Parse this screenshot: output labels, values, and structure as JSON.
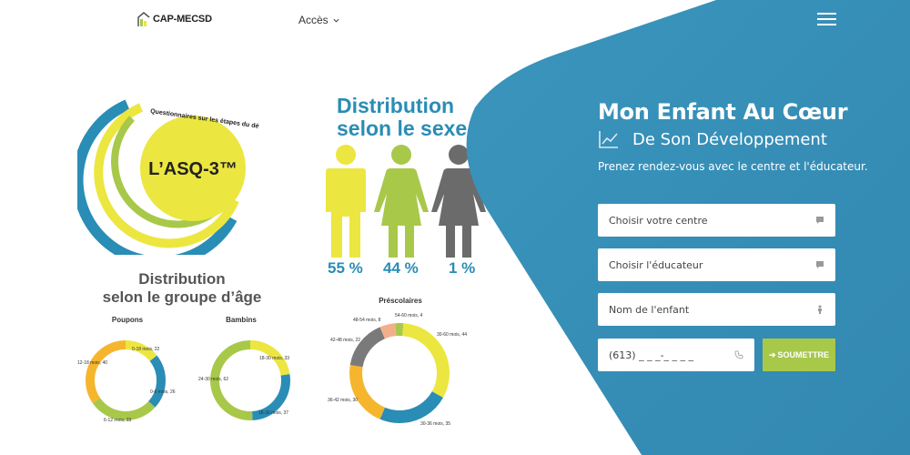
{
  "header": {
    "logo_text": "CAP-MECSD",
    "nav_acces": "Accès"
  },
  "asq": {
    "center_text": "L’ASQ-3™",
    "arc_text": "Questionnaires sur les étapes du développement",
    "colors": {
      "yellow": "#ece640",
      "blue": "#2a8db5",
      "green": "#a8c84a",
      "gray": "#6b6b6b"
    }
  },
  "sex_chart": {
    "title_line1": "Distribution",
    "title_line2": "selon le sexe",
    "percents": [
      "55 %",
      "44 %",
      "1 %"
    ]
  },
  "age_chart": {
    "title_line1": "Distribution",
    "title_line2": "selon le groupe d’âge",
    "poupons": {
      "title": "Poupons",
      "labels": [
        "0-18 mois, 22",
        "0-6 mois, 26",
        "6-12 mois, 33",
        "12-18 mois, 40"
      ]
    },
    "bambins": {
      "title": "Bambins",
      "labels": [
        "18-30 mois, 33",
        "18-30 mois, 37",
        "24-30 mois, 62"
      ]
    },
    "prescolaires": {
      "title": "Préscolaires",
      "labels": [
        "54-60 mois, 4",
        "30-60 mois, 44",
        "30-36 mois, 35",
        "36-42 mois, 30",
        "42-48 mois, 22",
        "48-54 mois, 8"
      ]
    }
  },
  "panel": {
    "title": "Mon Enfant Au Cœur",
    "subtitle": "De Son Développement",
    "description": "Prenez rendez-vous avec le centre et l'éducateur.",
    "centre_field": "Choisir votre centre",
    "educateur_field": "Choisir l'éducateur",
    "enfant_field": "Nom de l'enfant",
    "phone_placeholder": "(613) _ _ _-_ _ _ _",
    "submit_label": "SOUMETTRE",
    "panel_color": "#3a8fb7"
  }
}
